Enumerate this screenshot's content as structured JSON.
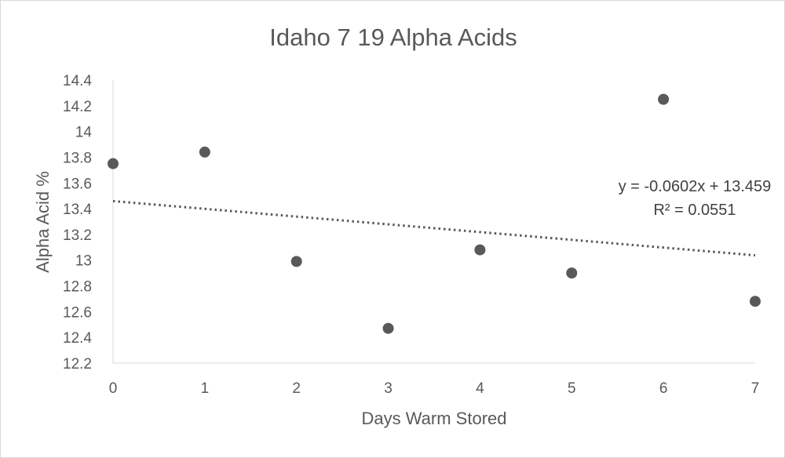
{
  "chart_data": {
    "type": "scatter",
    "title": "Idaho 7 19 Alpha Acids",
    "xlabel": "Days Warm Stored",
    "ylabel": "Alpha Acid %",
    "xlim": [
      0,
      7
    ],
    "ylim": [
      12.2,
      14.4
    ],
    "x_ticks": [
      "0",
      "1",
      "2",
      "3",
      "4",
      "5",
      "6",
      "7"
    ],
    "y_ticks": [
      "12.2",
      "12.4",
      "12.6",
      "12.8",
      "13",
      "13.2",
      "13.4",
      "13.6",
      "13.8",
      "14",
      "14.2",
      "14.4"
    ],
    "grid": false,
    "legend": "none",
    "series": [
      {
        "x": [
          0,
          1,
          2,
          3,
          4,
          5,
          6,
          7
        ],
        "y": [
          13.75,
          13.84,
          12.99,
          12.47,
          13.08,
          12.9,
          14.25,
          12.68
        ],
        "color": "#595959"
      }
    ],
    "trendline": {
      "type": "linear",
      "slope": -0.0602,
      "intercept": 13.459,
      "color": "#595959",
      "style": "dotted",
      "equation_label": "y = -0.0602x + 13.459",
      "r2_label": "R² = 0.0551"
    }
  }
}
